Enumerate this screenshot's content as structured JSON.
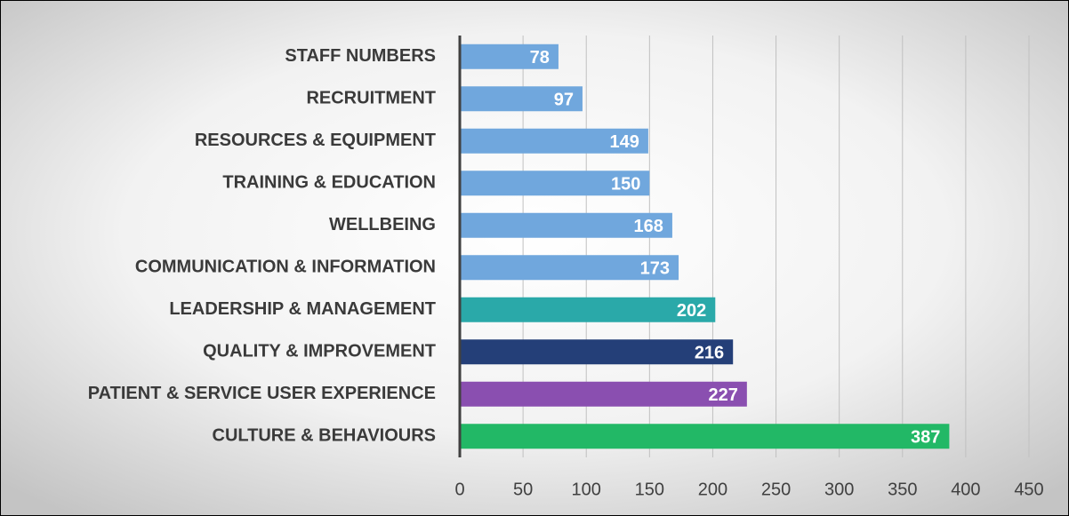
{
  "chart_data": {
    "type": "hbar",
    "categories": [
      "STAFF NUMBERS",
      "RECRUITMENT",
      "RESOURCES & EQUIPMENT",
      "TRAINING & EDUCATION",
      "WELLBEING",
      "COMMUNICATION & INFORMATION",
      "LEADERSHIP & MANAGEMENT",
      "QUALITY & IMPROVEMENT",
      "PATIENT & SERVICE USER EXPERIENCE",
      "CULTURE & BEHAVIOURS"
    ],
    "values": [
      78,
      97,
      149,
      150,
      168,
      173,
      202,
      216,
      227,
      387
    ],
    "colors": [
      "#70a7dd",
      "#70a7dd",
      "#70a7dd",
      "#70a7dd",
      "#70a7dd",
      "#70a7dd",
      "#2aa9a9",
      "#243f78",
      "#8a4fb0",
      "#22b866"
    ],
    "xlim": [
      0,
      450
    ],
    "xticks": [
      0,
      50,
      100,
      150,
      200,
      250,
      300,
      350,
      400,
      450
    ],
    "grid": true
  }
}
